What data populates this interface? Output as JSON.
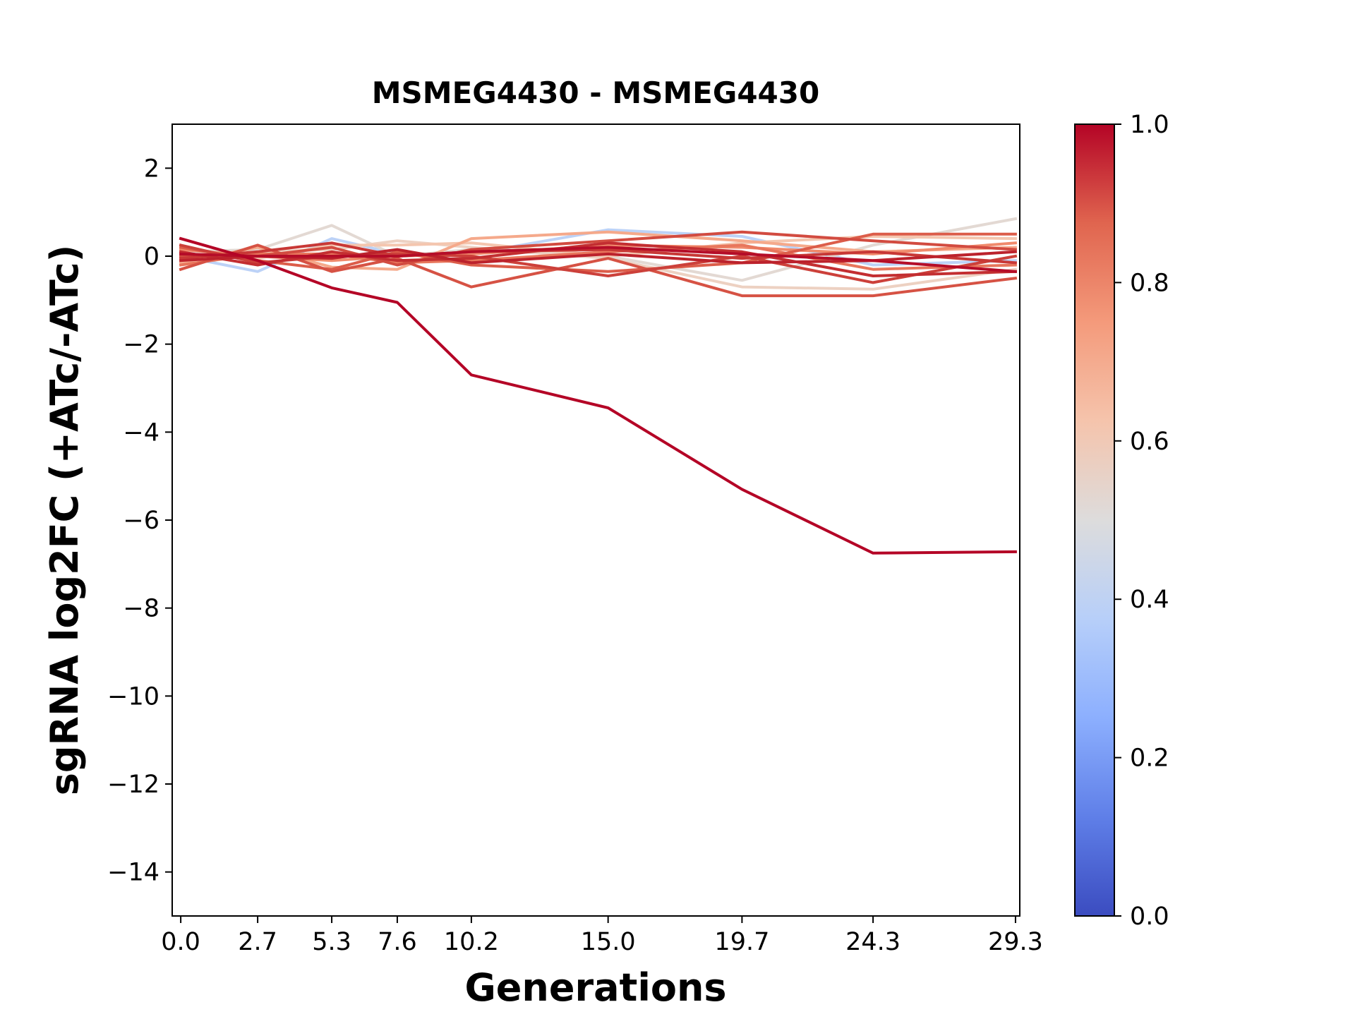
{
  "chart_data": {
    "type": "line",
    "title": "MSMEG4430 - MSMEG4430",
    "xlabel": "Generations",
    "ylabel": "sgRNA log2FC (+ATc/-ATc)",
    "x": [
      0.0,
      2.7,
      5.3,
      7.6,
      10.2,
      15.0,
      19.7,
      24.3,
      29.3
    ],
    "x_tick_labels": [
      "0.0",
      "2.7",
      "5.3",
      "7.6",
      "10.2",
      "15.0",
      "19.7",
      "24.3",
      "29.3"
    ],
    "xlim": [
      -0.3,
      29.45
    ],
    "ylim": [
      -15,
      3
    ],
    "y_ticks": [
      2,
      0,
      -2,
      -4,
      -6,
      -8,
      -10,
      -12,
      -14
    ],
    "y_tick_labels": [
      "2",
      "0",
      "−2",
      "−4",
      "−6",
      "−8",
      "−10",
      "−12",
      "−14"
    ],
    "grid": false,
    "colorbar": {
      "colormap": "coolwarm",
      "range": [
        0.0,
        1.0
      ],
      "ticks": [
        0.0,
        0.2,
        0.4,
        0.6,
        0.8,
        1.0
      ],
      "tick_labels": [
        "0.0",
        "0.2",
        "0.4",
        "0.6",
        "0.8",
        "1.0"
      ]
    },
    "series": [
      {
        "color_value": 0.35,
        "color": "#bcd2f7",
        "values": [
          0.0,
          -0.35,
          0.4,
          0.05,
          0.05,
          0.6,
          0.45,
          -0.2,
          -0.1
        ]
      },
      {
        "color_value": 0.55,
        "color": "#e3d9d3",
        "values": [
          0.1,
          0.15,
          0.7,
          0.0,
          0.15,
          0.0,
          -0.55,
          0.25,
          0.85
        ]
      },
      {
        "color_value": 0.58,
        "color": "#edd1c2",
        "values": [
          -0.1,
          0.1,
          0.15,
          0.35,
          0.2,
          -0.05,
          -0.7,
          -0.75,
          -0.3
        ]
      },
      {
        "color_value": 0.65,
        "color": "#f4c6af",
        "values": [
          0.05,
          -0.05,
          0.25,
          0.25,
          0.3,
          0.0,
          0.3,
          0.45,
          0.4
        ]
      },
      {
        "color_value": 0.72,
        "color": "#f5a98b",
        "values": [
          -0.15,
          0.2,
          -0.25,
          -0.3,
          0.4,
          0.55,
          0.35,
          0.1,
          0.2
        ]
      },
      {
        "color_value": 0.78,
        "color": "#f08a6c",
        "values": [
          0.15,
          0.0,
          -0.1,
          0.0,
          0.05,
          0.25,
          0.2,
          0.05,
          0.3
        ]
      },
      {
        "color_value": 0.82,
        "color": "#e8765c",
        "values": [
          -0.2,
          0.05,
          0.05,
          -0.15,
          -0.1,
          0.1,
          0.25,
          -0.3,
          -0.2
        ]
      },
      {
        "color_value": 0.86,
        "color": "#dc5d4a",
        "values": [
          0.2,
          -0.1,
          -0.3,
          0.1,
          -0.2,
          -0.35,
          -0.15,
          0.5,
          0.5
        ]
      },
      {
        "color_value": 0.88,
        "color": "#d65244",
        "values": [
          -0.3,
          0.25,
          -0.35,
          -0.05,
          -0.7,
          -0.05,
          -0.9,
          -0.9,
          -0.5
        ]
      },
      {
        "color_value": 0.9,
        "color": "#d24b40",
        "values": [
          0.0,
          0.0,
          0.2,
          -0.2,
          0.15,
          0.35,
          0.55,
          0.35,
          0.15
        ]
      },
      {
        "color_value": 0.92,
        "color": "#cc403a",
        "values": [
          0.25,
          -0.15,
          0.0,
          0.05,
          0.0,
          -0.45,
          0.0,
          -0.6,
          0.0
        ]
      },
      {
        "color_value": 0.93,
        "color": "#c83836",
        "values": [
          -0.05,
          0.1,
          0.3,
          0.0,
          0.1,
          0.15,
          -0.05,
          0.1,
          -0.15
        ]
      },
      {
        "color_value": 0.95,
        "color": "#c32e31",
        "values": [
          0.1,
          -0.2,
          0.1,
          -0.1,
          -0.05,
          0.3,
          0.1,
          -0.45,
          -0.35
        ]
      },
      {
        "color_value": 0.97,
        "color": "#bc222c",
        "values": [
          -0.1,
          0.0,
          -0.05,
          0.15,
          -0.15,
          0.05,
          -0.15,
          -0.1,
          0.1
        ]
      },
      {
        "color_value": 0.99,
        "color": "#b50d28",
        "values": [
          0.05,
          0.0,
          0.0,
          0.0,
          0.1,
          0.2,
          0.05,
          -0.1,
          -0.35
        ]
      },
      {
        "color_value": 1.0,
        "color": "#b40426",
        "values": [
          0.4,
          -0.1,
          -0.72,
          -1.05,
          -2.7,
          -3.45,
          -5.3,
          -6.75,
          -6.72
        ]
      }
    ]
  }
}
